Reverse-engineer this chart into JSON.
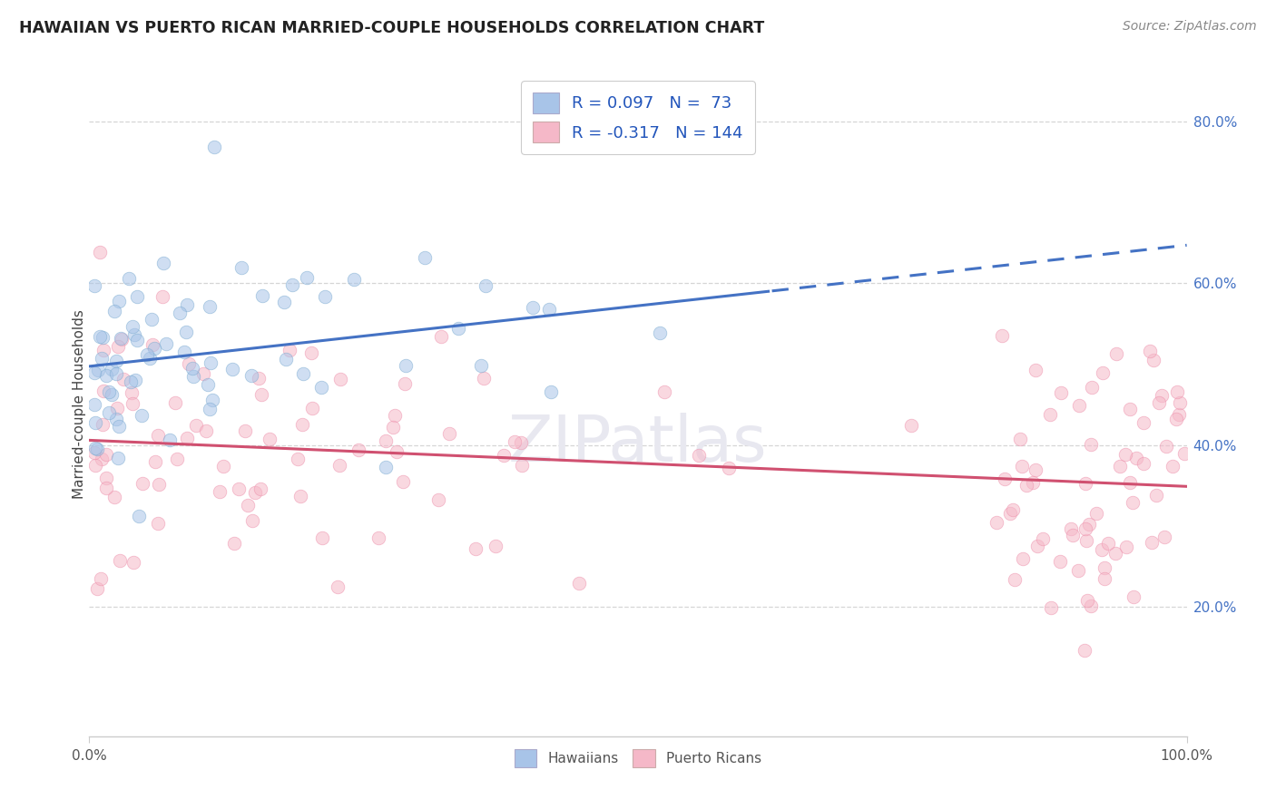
{
  "title": "HAWAIIAN VS PUERTO RICAN MARRIED-COUPLE HOUSEHOLDS CORRELATION CHART",
  "source": "Source: ZipAtlas.com",
  "ylabel": "Married-couple Households",
  "xlim": [
    0.0,
    1.0
  ],
  "ylim": [
    0.04,
    0.86
  ],
  "xtick_labels": [
    "0.0%",
    "100.0%"
  ],
  "ytick_positions": [
    0.2,
    0.4,
    0.6,
    0.8
  ],
  "ytick_labels": [
    "20.0%",
    "40.0%",
    "60.0%",
    "80.0%"
  ],
  "hawaiian_color": "#A8C4E8",
  "puerto_rican_color": "#F5B8C8",
  "hawaiian_edge_color": "#7AAAD0",
  "puerto_rican_edge_color": "#EE8FAA",
  "hawaiian_line_color": "#4472C4",
  "puerto_rican_line_color": "#D05070",
  "hawaiian_R": 0.097,
  "hawaiian_N": 73,
  "puerto_rican_R": -0.317,
  "puerto_rican_N": 144,
  "watermark_text": "ZIPatlas",
  "watermark_color": "#E8E8F0",
  "legend_label_hawaiian": "Hawaiians",
  "legend_label_puerto_rican": "Puerto Ricans",
  "background_color": "#ffffff",
  "grid_color": "#CCCCCC",
  "hawaiian_line_solid_end": 0.62,
  "scatter_size": 110,
  "scatter_alpha": 0.55
}
